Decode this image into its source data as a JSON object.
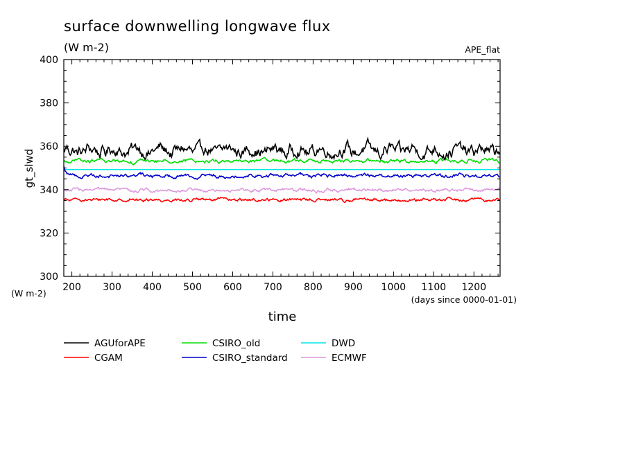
{
  "chart_data": {
    "type": "line",
    "title": "surface downwelling longwave flux",
    "units": "(W m-2)",
    "experiment": "APE_flat",
    "xlabel": "time",
    "x_units": "(days since 0000-01-01)",
    "ylabel": "gt_slwd",
    "y_units": "(W m-2)",
    "xlim": [
      180,
      1265
    ],
    "ylim": [
      300,
      400
    ],
    "x_ticks": [
      "200",
      "300",
      "400",
      "500",
      "600",
      "700",
      "800",
      "900",
      "1000",
      "1100",
      "1200"
    ],
    "y_ticks": [
      "300",
      "320",
      "340",
      "360",
      "380",
      "400"
    ],
    "legend_position": "bottom-left",
    "series": [
      {
        "name": "AGUforAPE",
        "color": "#000000",
        "mean": 358,
        "amp": 3.5,
        "start": 357
      },
      {
        "name": "CGAM",
        "color": "#ff0000",
        "mean": 335.3,
        "amp": 0.9,
        "start": 335
      },
      {
        "name": "CSIRO_old",
        "color": "#00dd00",
        "mean": 353.2,
        "amp": 1.0,
        "start": 352.5
      },
      {
        "name": "CSIRO_standard",
        "color": "#0000cc",
        "mean": 346.5,
        "amp": 1.0,
        "start": 351.5
      },
      {
        "name": "DWD",
        "color": "#00e5e5",
        "mean": 349.3,
        "amp": 0,
        "start": 349.3
      },
      {
        "name": "ECMWF",
        "color": "#dd99dd",
        "mean": 339.8,
        "amp": 0.9,
        "start": 340.5
      }
    ]
  }
}
